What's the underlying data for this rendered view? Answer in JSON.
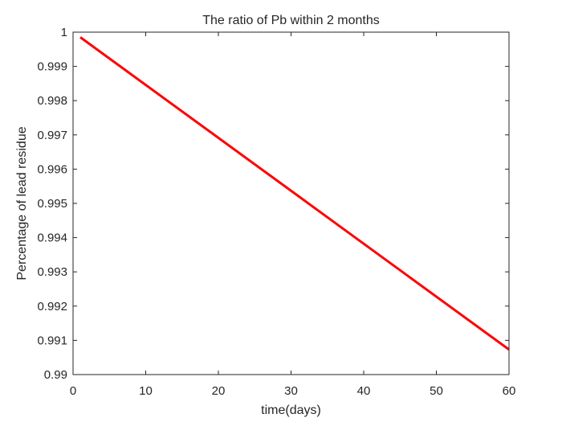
{
  "chart_data": {
    "type": "line",
    "title": "The ratio of Pb within 2 months",
    "xlabel": "time(days)",
    "ylabel": "Percentage of lead residue",
    "xlim": [
      0,
      60
    ],
    "ylim": [
      0.99,
      1
    ],
    "xticks": [
      0,
      10,
      20,
      30,
      40,
      50,
      60
    ],
    "xtick_labels": [
      "0",
      "10",
      "20",
      "30",
      "40",
      "50",
      "60"
    ],
    "yticks": [
      0.99,
      0.991,
      0.992,
      0.993,
      0.994,
      0.995,
      0.996,
      0.997,
      0.998,
      0.999,
      1
    ],
    "ytick_labels": [
      "0.99",
      "0.991",
      "0.992",
      "0.993",
      "0.994",
      "0.995",
      "0.996",
      "0.997",
      "0.998",
      "0.999",
      "1"
    ],
    "grid": false,
    "box": true,
    "series": [
      {
        "color": "#ff0000",
        "x": [
          1,
          60
        ],
        "y": [
          0.99985,
          0.99073
        ]
      }
    ]
  }
}
